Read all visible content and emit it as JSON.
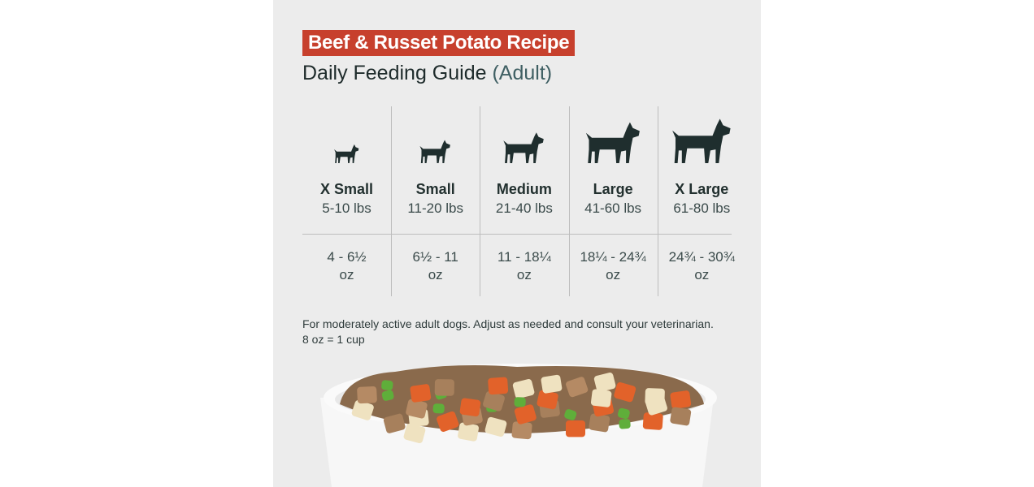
{
  "header": {
    "recipe": "Beef & Russet Potato Recipe",
    "title": "Daily Feeding Guide",
    "title_note": "(Adult)"
  },
  "table": {
    "columns": [
      {
        "size": "X Small",
        "weight": "5-10 lbs",
        "amount": "4 - 6½",
        "unit": "oz"
      },
      {
        "size": "Small",
        "weight": "11-20 lbs",
        "amount": "6½ - 11",
        "unit": "oz"
      },
      {
        "size": "Medium",
        "weight": "21-40 lbs",
        "amount": "11 - 18¼",
        "unit": "oz"
      },
      {
        "size": "Large",
        "weight": "41-60 lbs",
        "amount": "18¼ - 24¾",
        "unit": "oz"
      },
      {
        "size": "X Large",
        "weight": "61-80 lbs",
        "amount": "24¾ - 30¾",
        "unit": "oz"
      }
    ]
  },
  "footnote": {
    "line1": "For moderately active adult dogs. Adjust as needed and consult your veterinarian.",
    "line2": "8 oz = 1 cup"
  }
}
